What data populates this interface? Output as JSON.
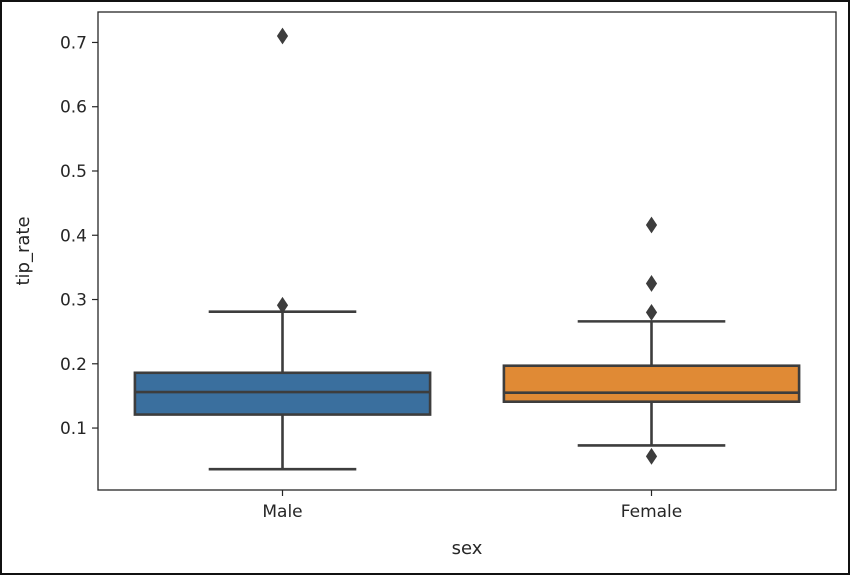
{
  "chart_data": {
    "type": "box",
    "title": "",
    "xlabel": "sex",
    "ylabel": "tip_rate",
    "categories": [
      "Male",
      "Female"
    ],
    "ylim": [
      0.0036,
      0.7474
    ],
    "yticks": [
      0.1,
      0.2,
      0.3,
      0.4,
      0.5,
      0.6,
      0.7
    ],
    "ytick_labels": [
      "0.1",
      "0.2",
      "0.3",
      "0.4",
      "0.5",
      "0.6",
      "0.7"
    ],
    "grid": false,
    "boxes": [
      {
        "category": "Male",
        "color": "#3a6f9e",
        "whislo": 0.036,
        "q1": 0.121,
        "median": 0.156,
        "q3": 0.186,
        "whishi": 0.281,
        "fliers": [
          0.291,
          0.71
        ]
      },
      {
        "category": "Female",
        "color": "#e08a35",
        "whislo": 0.073,
        "q1": 0.141,
        "median": 0.155,
        "q3": 0.197,
        "whishi": 0.266,
        "fliers": [
          0.056,
          0.28,
          0.325,
          0.416
        ]
      }
    ]
  }
}
